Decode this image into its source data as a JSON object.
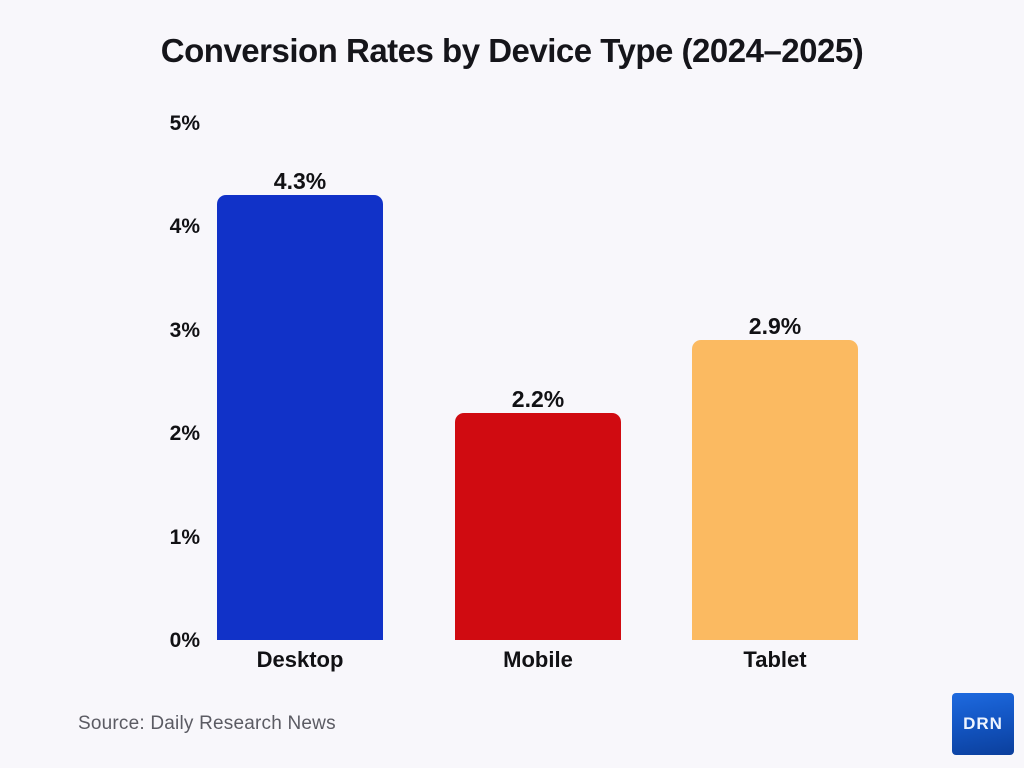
{
  "title": "Conversion Rates by Device Type (2024–2025)",
  "source": "Source: Daily Research News",
  "logo": {
    "text": "DRN"
  },
  "colors": {
    "background": "#f8f7fb",
    "title_text": "#15151a",
    "axis_text": "#111114",
    "source_text": "#5b5b63",
    "logo_gradient_start": "#1e6adf",
    "logo_gradient_end": "#0b3f9c"
  },
  "chart_data": {
    "type": "bar",
    "title": "Conversion Rates by Device Type (2024–2025)",
    "categories": [
      "Desktop",
      "Mobile",
      "Tablet"
    ],
    "values": [
      4.3,
      2.2,
      2.9
    ],
    "value_labels": [
      "4.3%",
      "2.2%",
      "2.9%"
    ],
    "bar_colors": [
      "#1132c8",
      "#d00b11",
      "#fbba61"
    ],
    "xlabel": "",
    "ylabel": "",
    "ylim": [
      0,
      5
    ],
    "yticks": [
      "0%",
      "1%",
      "2%",
      "3%",
      "4%",
      "5%"
    ],
    "grid": false,
    "legend": false
  }
}
